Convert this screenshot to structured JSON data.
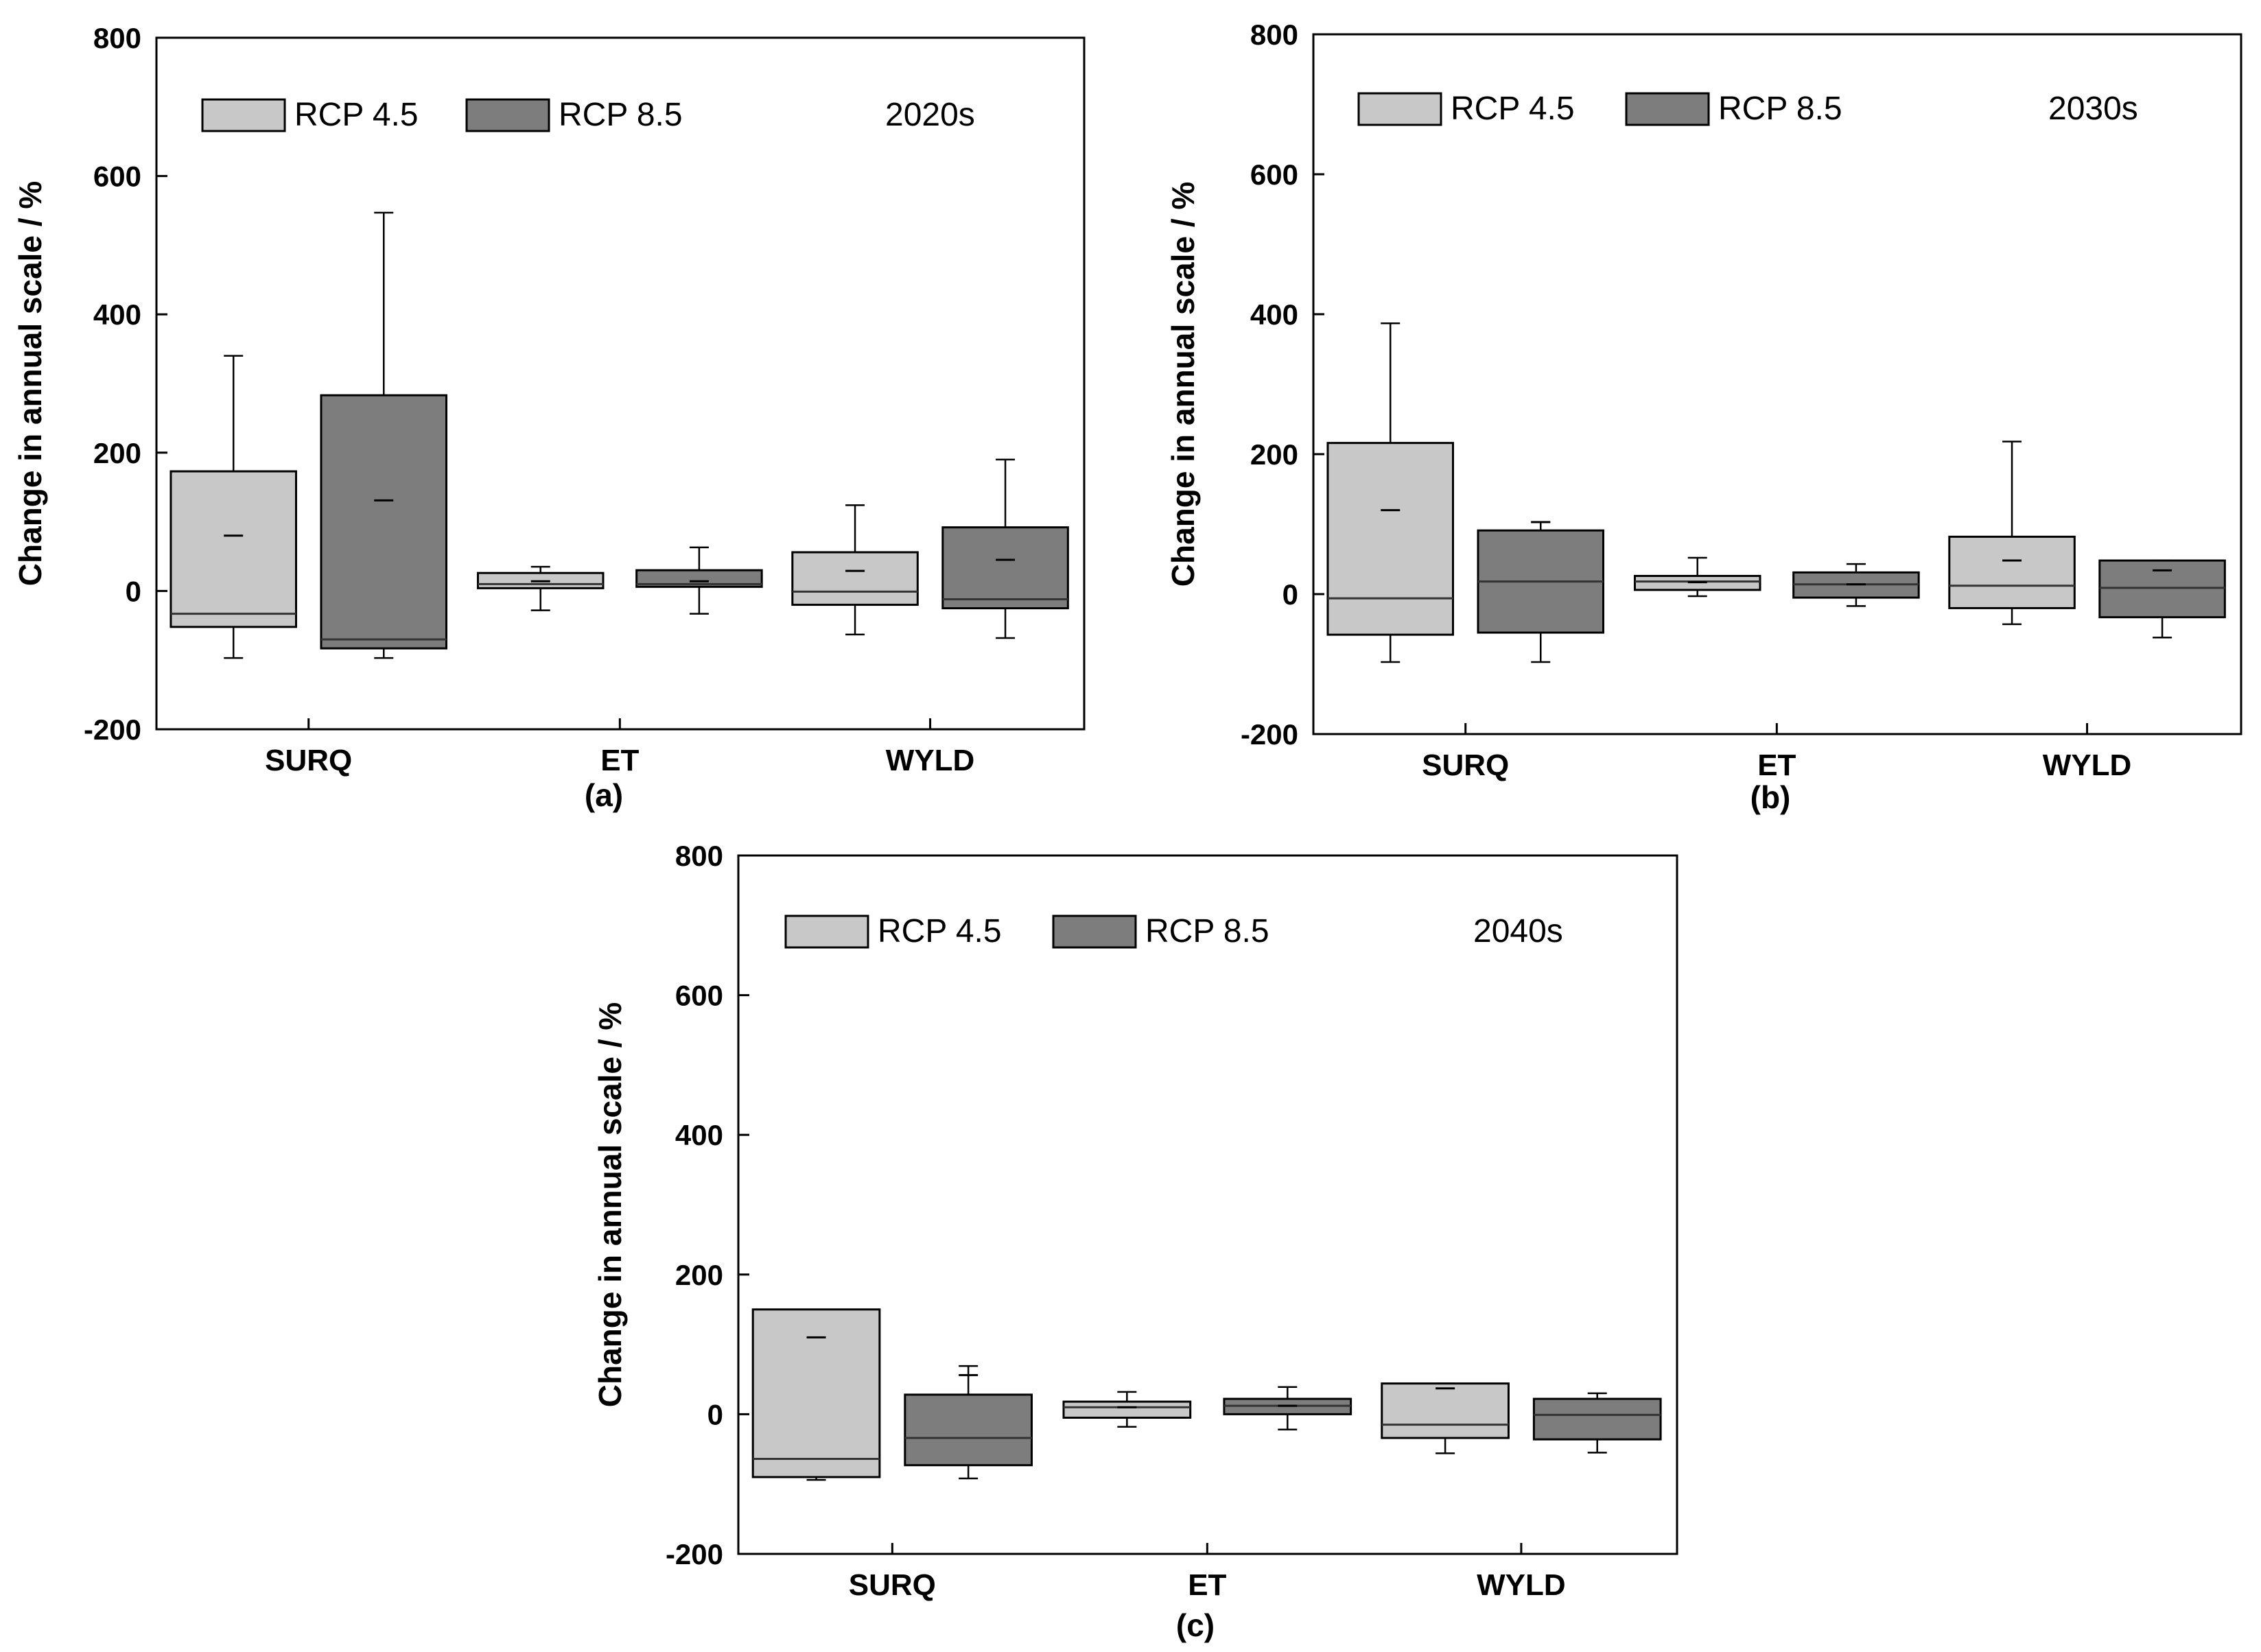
{
  "chart_data": [
    {
      "type": "box",
      "panel_label": "(a)",
      "period": "2020s",
      "ylabel": "Change in annual scale / %",
      "ylim": [
        -200,
        800
      ],
      "yticks": [
        -200,
        0,
        200,
        400,
        600,
        800
      ],
      "categories": [
        "SURQ",
        "ET",
        "WYLD"
      ],
      "legend": [
        {
          "name": "RCP 4.5",
          "color": "#c8c8c8"
        },
        {
          "name": "RCP 8.5",
          "color": "#7d7d7d"
        }
      ],
      "series": [
        {
          "name": "RCP 4.5",
          "color": "#c8c8c8",
          "boxes": [
            {
              "category": "SURQ",
              "whisker_low": -97,
              "q1": -52,
              "median": -33,
              "q3": 173,
              "whisker_high": 340,
              "mean": 80
            },
            {
              "category": "ET",
              "whisker_low": -28,
              "q1": 4,
              "median": 10,
              "q3": 26,
              "whisker_high": 35,
              "mean": 14
            },
            {
              "category": "WYLD",
              "whisker_low": -63,
              "q1": -20,
              "median": -1,
              "q3": 56,
              "whisker_high": 124,
              "mean": 29
            }
          ]
        },
        {
          "name": "RCP 8.5",
          "color": "#7d7d7d",
          "boxes": [
            {
              "category": "SURQ",
              "whisker_low": -97,
              "q1": -83,
              "median": -70,
              "q3": 283,
              "whisker_high": 547,
              "mean": 131
            },
            {
              "category": "ET",
              "whisker_low": -33,
              "q1": 6,
              "median": 10,
              "q3": 30,
              "whisker_high": 63,
              "mean": 14
            },
            {
              "category": "WYLD",
              "whisker_low": -68,
              "q1": -25,
              "median": -12,
              "q3": 92,
              "whisker_high": 190,
              "mean": 45
            }
          ]
        }
      ]
    },
    {
      "type": "box",
      "panel_label": "(b)",
      "period": "2030s",
      "ylabel": "Change in annual scale / %",
      "ylim": [
        -200,
        800
      ],
      "yticks": [
        -200,
        0,
        200,
        400,
        600,
        800
      ],
      "categories": [
        "SURQ",
        "ET",
        "WYLD"
      ],
      "legend": [
        {
          "name": "RCP 4.5",
          "color": "#c8c8c8"
        },
        {
          "name": "RCP 8.5",
          "color": "#7d7d7d"
        }
      ],
      "series": [
        {
          "name": "RCP 4.5",
          "color": "#c8c8c8",
          "boxes": [
            {
              "category": "SURQ",
              "whisker_low": -97,
              "q1": -58,
              "median": -6,
              "q3": 216,
              "whisker_high": 387,
              "mean": 120
            },
            {
              "category": "ET",
              "whisker_low": -3,
              "q1": 6,
              "median": 18,
              "q3": 26,
              "whisker_high": 52,
              "mean": 17
            },
            {
              "category": "WYLD",
              "whisker_low": -43,
              "q1": -20,
              "median": 12,
              "q3": 82,
              "whisker_high": 218,
              "mean": 48
            }
          ]
        },
        {
          "name": "RCP 8.5",
          "color": "#7d7d7d",
          "boxes": [
            {
              "category": "SURQ",
              "whisker_low": -97,
              "q1": -55,
              "median": 18,
              "q3": 91,
              "whisker_high": 103,
              "mean": 103
            },
            {
              "category": "ET",
              "whisker_low": -17,
              "q1": -5,
              "median": 14,
              "q3": 31,
              "whisker_high": 43,
              "mean": 14
            },
            {
              "category": "WYLD",
              "whisker_low": -62,
              "q1": -33,
              "median": 9,
              "q3": 48,
              "whisker_high": 48,
              "mean": 34
            }
          ]
        }
      ]
    },
    {
      "type": "box",
      "panel_label": "(c)",
      "period": "2040s",
      "ylabel": "Change in annual scale / %",
      "ylim": [
        -200,
        800
      ],
      "yticks": [
        -200,
        0,
        200,
        400,
        600,
        800
      ],
      "categories": [
        "SURQ",
        "ET",
        "WYLD"
      ],
      "legend": [
        {
          "name": "RCP 4.5",
          "color": "#c8c8c8"
        },
        {
          "name": "RCP 8.5",
          "color": "#7d7d7d"
        }
      ],
      "series": [
        {
          "name": "RCP 4.5",
          "color": "#c8c8c8",
          "boxes": [
            {
              "category": "SURQ",
              "whisker_low": -94,
              "q1": -90,
              "median": -64,
              "q3": 150,
              "whisker_high": 150,
              "mean": 110
            },
            {
              "category": "ET",
              "whisker_low": -18,
              "q1": -5,
              "median": 10,
              "q3": 18,
              "whisker_high": 32,
              "mean": 10
            },
            {
              "category": "WYLD",
              "whisker_low": -56,
              "q1": -34,
              "median": -15,
              "q3": 44,
              "whisker_high": 44,
              "mean": 37
            }
          ]
        },
        {
          "name": "RCP 8.5",
          "color": "#7d7d7d",
          "boxes": [
            {
              "category": "SURQ",
              "whisker_low": -92,
              "q1": -73,
              "median": -34,
              "q3": 28,
              "whisker_high": 69,
              "mean": 56
            },
            {
              "category": "ET",
              "whisker_low": -22,
              "q1": 0,
              "median": 12,
              "q3": 22,
              "whisker_high": 39,
              "mean": 12
            },
            {
              "category": "WYLD",
              "whisker_low": -55,
              "q1": -36,
              "median": -1,
              "q3": 22,
              "whisker_high": 30,
              "mean": 22
            }
          ]
        }
      ]
    }
  ]
}
